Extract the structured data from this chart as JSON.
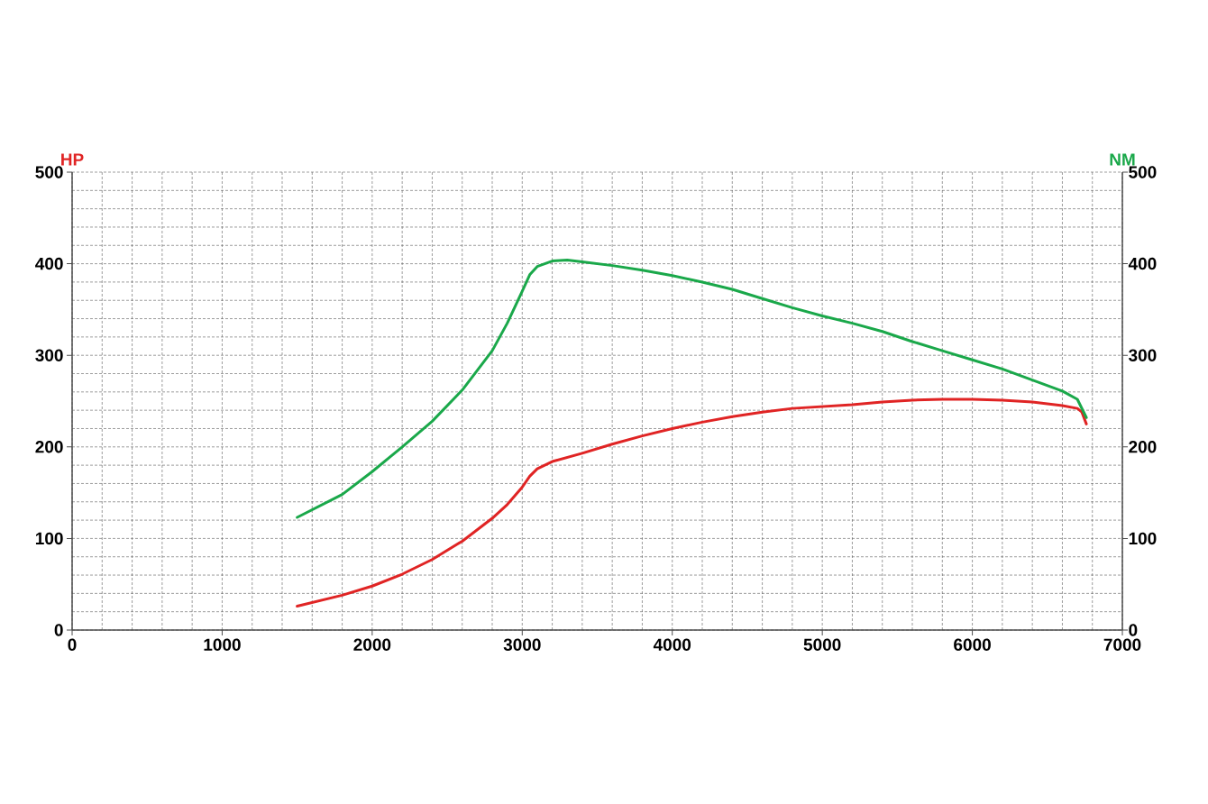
{
  "chart_data": {
    "type": "line",
    "ylabel": "HP",
    "y2label": "NM",
    "xlim": [
      0,
      7000
    ],
    "xticks": [
      0,
      1000,
      2000,
      3000,
      4000,
      5000,
      6000,
      7000
    ],
    "ylim": [
      0,
      500
    ],
    "yticks": [
      0,
      100,
      200,
      300,
      400,
      500
    ],
    "y2lim": [
      0,
      500
    ],
    "y2ticks": [
      0,
      100,
      200,
      300,
      400,
      500
    ],
    "grid": true,
    "series": [
      {
        "color": "#e02424",
        "x": [
          1500,
          1800,
          2000,
          2200,
          2400,
          2600,
          2800,
          2900,
          3000,
          3050,
          3100,
          3200,
          3400,
          3600,
          3800,
          4000,
          4200,
          4400,
          4600,
          4800,
          5000,
          5200,
          5400,
          5600,
          5800,
          6000,
          6200,
          6400,
          6600,
          6700,
          6730,
          6760
        ],
        "values": [
          26,
          38,
          48,
          61,
          77,
          97,
          122,
          137,
          156,
          168,
          176,
          184,
          193,
          203,
          212,
          220,
          227,
          233,
          238,
          242,
          244,
          246,
          249,
          251,
          252,
          252,
          251,
          249,
          245,
          242,
          238,
          225
        ]
      },
      {
        "color": "#1aa84a",
        "axis": "y2",
        "x": [
          1500,
          1800,
          2000,
          2200,
          2400,
          2600,
          2800,
          2900,
          3000,
          3050,
          3100,
          3200,
          3300,
          3400,
          3600,
          3800,
          4000,
          4200,
          4400,
          4600,
          4800,
          5000,
          5200,
          5400,
          5600,
          5800,
          6000,
          6200,
          6400,
          6600,
          6700,
          6760
        ],
        "values": [
          123,
          148,
          173,
          200,
          228,
          262,
          305,
          335,
          370,
          388,
          397,
          403,
          404,
          402,
          398,
          393,
          387,
          380,
          372,
          362,
          352,
          343,
          335,
          326,
          315,
          305,
          295,
          285,
          273,
          261,
          252,
          232
        ]
      }
    ]
  }
}
